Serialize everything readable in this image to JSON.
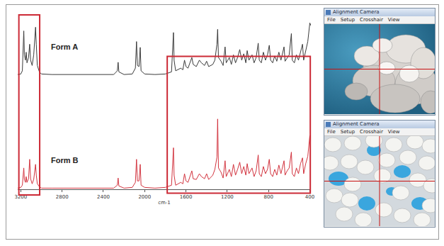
{
  "chart_data": {
    "type": "line",
    "x_label": "cm-1",
    "x": [
      3230,
      3200,
      3185,
      3175,
      3171,
      3165,
      3155,
      3148,
      3140,
      3125,
      3114,
      3105,
      3090,
      3075,
      3065,
      3057,
      3050,
      3040,
      3020,
      3000,
      2900,
      2700,
      2500,
      2300,
      2265,
      2257,
      2250,
      2200,
      2120,
      2090,
      2079,
      2070,
      2055,
      2043,
      2035,
      2000,
      1900,
      1800,
      1740,
      1725,
      1721,
      1715,
      1700,
      1650,
      1630,
      1614,
      1600,
      1580,
      1560,
      1543,
      1530,
      1500,
      1470,
      1450,
      1420,
      1400,
      1380,
      1340,
      1320,
      1300,
      1293,
      1285,
      1260,
      1240,
      1221,
      1210,
      1180,
      1160,
      1140,
      1120,
      1100,
      1079,
      1060,
      1040,
      1020,
      1007,
      990,
      960,
      940,
      920,
      900,
      890,
      870,
      850,
      830,
      810,
      793,
      780,
      760,
      740,
      720,
      700,
      680,
      650,
      640,
      620,
      600,
      579,
      570,
      550,
      530,
      510,
      490,
      471,
      460,
      440,
      420,
      400,
      390
    ],
    "series": [
      {
        "name": "Form A",
        "color": "#3a3a3a",
        "axis": "y2",
        "values": [
          3,
          4,
          10,
          70,
          85,
          40,
          30,
          45,
          25,
          35,
          60,
          30,
          20,
          40,
          75,
          92,
          60,
          20,
          8,
          4,
          3,
          3,
          2,
          3,
          10,
          26,
          8,
          3,
          4,
          15,
          65,
          20,
          18,
          54,
          10,
          4,
          3,
          4,
          8,
          60,
          82,
          30,
          10,
          15,
          12,
          30,
          18,
          15,
          25,
          35,
          22,
          18,
          30,
          25,
          20,
          28,
          18,
          22,
          30,
          60,
          88,
          35,
          28,
          20,
          55,
          25,
          35,
          22,
          40,
          25,
          35,
          50,
          30,
          42,
          25,
          48,
          30,
          40,
          25,
          35,
          62,
          30,
          25,
          45,
          30,
          40,
          58,
          30,
          25,
          38,
          28,
          45,
          30,
          55,
          28,
          35,
          40,
          80,
          30,
          25,
          40,
          30,
          45,
          60,
          30,
          50,
          65,
          100,
          95
        ]
      },
      {
        "name": "Form B",
        "color": "#d2343f",
        "values": [
          2,
          3,
          6,
          22,
          30,
          14,
          10,
          18,
          10,
          15,
          42,
          15,
          8,
          14,
          28,
          35,
          20,
          8,
          4,
          2,
          2,
          2,
          2,
          2,
          6,
          16,
          5,
          2,
          3,
          10,
          42,
          12,
          12,
          35,
          6,
          3,
          2,
          3,
          6,
          40,
          58,
          20,
          6,
          10,
          8,
          22,
          12,
          10,
          18,
          26,
          15,
          14,
          22,
          18,
          15,
          22,
          14,
          20,
          28,
          45,
          98,
          30,
          24,
          16,
          40,
          18,
          28,
          18,
          35,
          20,
          28,
          38,
          22,
          32,
          20,
          36,
          22,
          30,
          18,
          26,
          48,
          22,
          18,
          32,
          22,
          28,
          42,
          22,
          18,
          28,
          20,
          34,
          22,
          40,
          20,
          26,
          30,
          52,
          22,
          18,
          30,
          22,
          36,
          44,
          22,
          36,
          46,
          75,
          60
        ]
      }
    ],
    "xlim": [
      3230,
      390
    ],
    "xticks": [
      3200,
      2800,
      2400,
      2000,
      1600,
      1200,
      800,
      400
    ],
    "ylim": [
      0,
      105
    ],
    "y2lim": [
      0,
      105
    ],
    "grid": false,
    "tick_labels": "x"
  },
  "camera_windows": [
    {
      "window_title": "Alignment Camera",
      "menu": [
        "File",
        "Setup",
        "Crosshair",
        "View"
      ]
    },
    {
      "window_title": "Alignment Camera",
      "menu": [
        "File",
        "Setup",
        "Crosshair",
        "View"
      ]
    }
  ]
}
